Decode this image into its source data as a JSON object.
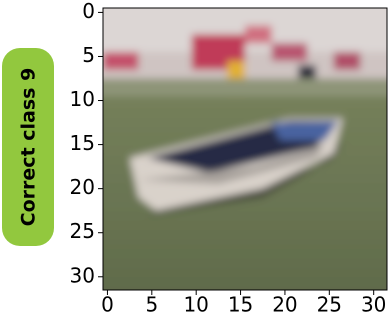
{
  "chart_data": {
    "type": "image",
    "label": "Correct class 9",
    "xlim": [
      -0.5,
      31.5
    ],
    "ylim": [
      31.5,
      -0.5
    ],
    "xticks": [
      0,
      5,
      10,
      15,
      20,
      25,
      30
    ],
    "yticks": [
      0,
      5,
      10,
      15,
      20,
      25,
      30
    ]
  }
}
